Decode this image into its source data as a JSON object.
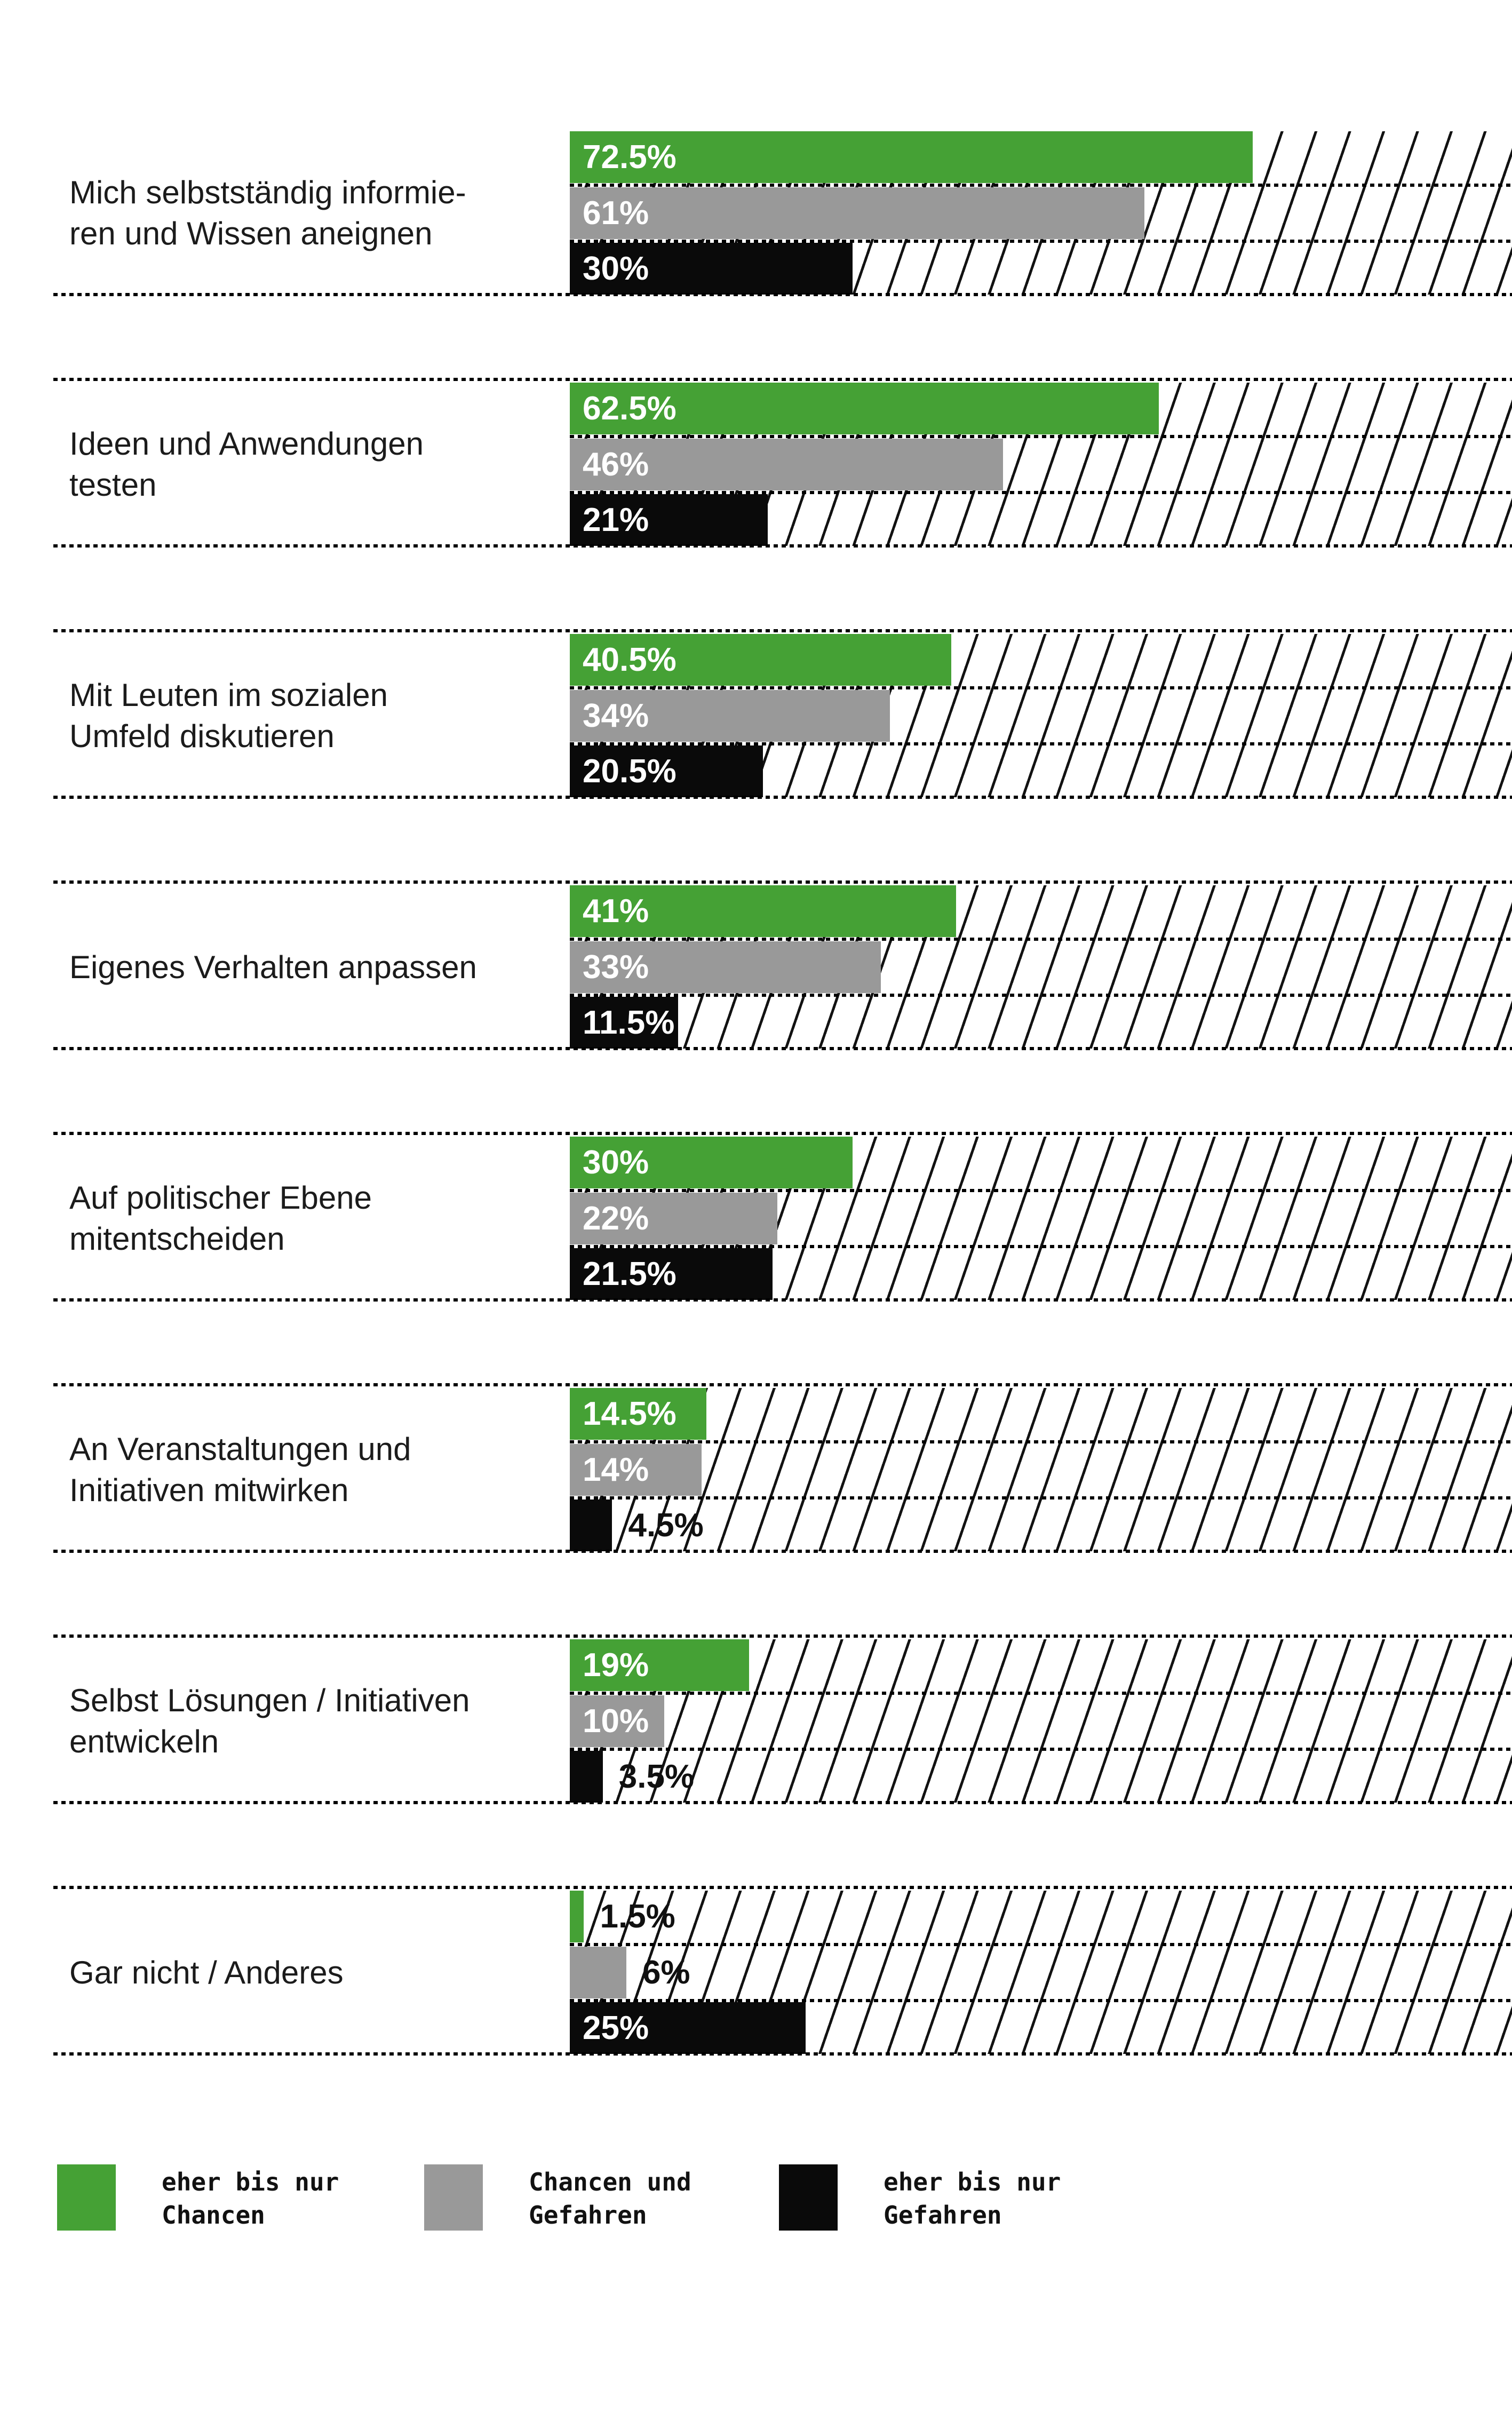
{
  "chart_data": {
    "type": "bar",
    "orientation": "horizontal",
    "unit": "percent",
    "axis_range": [
      0,
      100
    ],
    "grid": false,
    "legend_position": "bottom",
    "background": "diagonal-hatch 100% reference band behind each category group",
    "categories": [
      "Mich selbstständig informie-\nren und Wissen aneignen",
      "Ideen und Anwendungen\ntesten",
      "Mit Leuten im sozialen\nUmfeld diskutieren",
      "Eigenes Verhalten anpassen",
      "Auf politischer Ebene\nmitentscheiden",
      "An Veranstaltungen und\nInitiativen mitwirken",
      "Selbst Lösungen / Initiativen\nentwickeln",
      "Gar nicht / Anderes"
    ],
    "series": [
      {
        "name": "eher bis nur Chancen",
        "color": "#45a135",
        "values": [
          72.5,
          62.5,
          40.5,
          41,
          30,
          14.5,
          19,
          1.5
        ],
        "labels": [
          "72.5%",
          "62.5%",
          "40.5%",
          "41%",
          "30%",
          "14.5%",
          "19%",
          "1.5%"
        ],
        "label_outside": [
          false,
          false,
          false,
          false,
          false,
          false,
          false,
          true
        ]
      },
      {
        "name": "Chancen und Gefahren",
        "color": "#999999",
        "values": [
          61,
          46,
          34,
          33,
          22,
          14,
          10,
          6
        ],
        "labels": [
          "61%",
          "46%",
          "34%",
          "33%",
          "22%",
          "14%",
          "10%",
          "6%"
        ],
        "label_outside": [
          false,
          false,
          false,
          false,
          false,
          false,
          false,
          true
        ]
      },
      {
        "name": "eher bis nur Gefahren",
        "color": "#0a0a0a",
        "values": [
          30,
          21,
          20.5,
          11.5,
          21.5,
          4.5,
          3.5,
          25
        ],
        "labels": [
          "30%",
          "21%",
          "20.5%",
          "11.5%",
          "21.5%",
          "4.5%",
          "3.5%",
          "25%"
        ],
        "label_outside": [
          false,
          false,
          false,
          false,
          false,
          true,
          true,
          false
        ]
      }
    ]
  },
  "legend": {
    "items": [
      {
        "label": "eher bis nur\nChancen",
        "color": "#45a135"
      },
      {
        "label": "Chancen und\nGefahren",
        "color": "#999999"
      },
      {
        "label": "eher bis nur\nGefahren",
        "color": "#0a0a0a"
      }
    ]
  },
  "styles": {
    "hatch_line": "#121212",
    "dot_line": "#000000",
    "text": "#1b1b1b",
    "value_text_inside": "#ffffff",
    "value_text_outside": "#101010"
  }
}
